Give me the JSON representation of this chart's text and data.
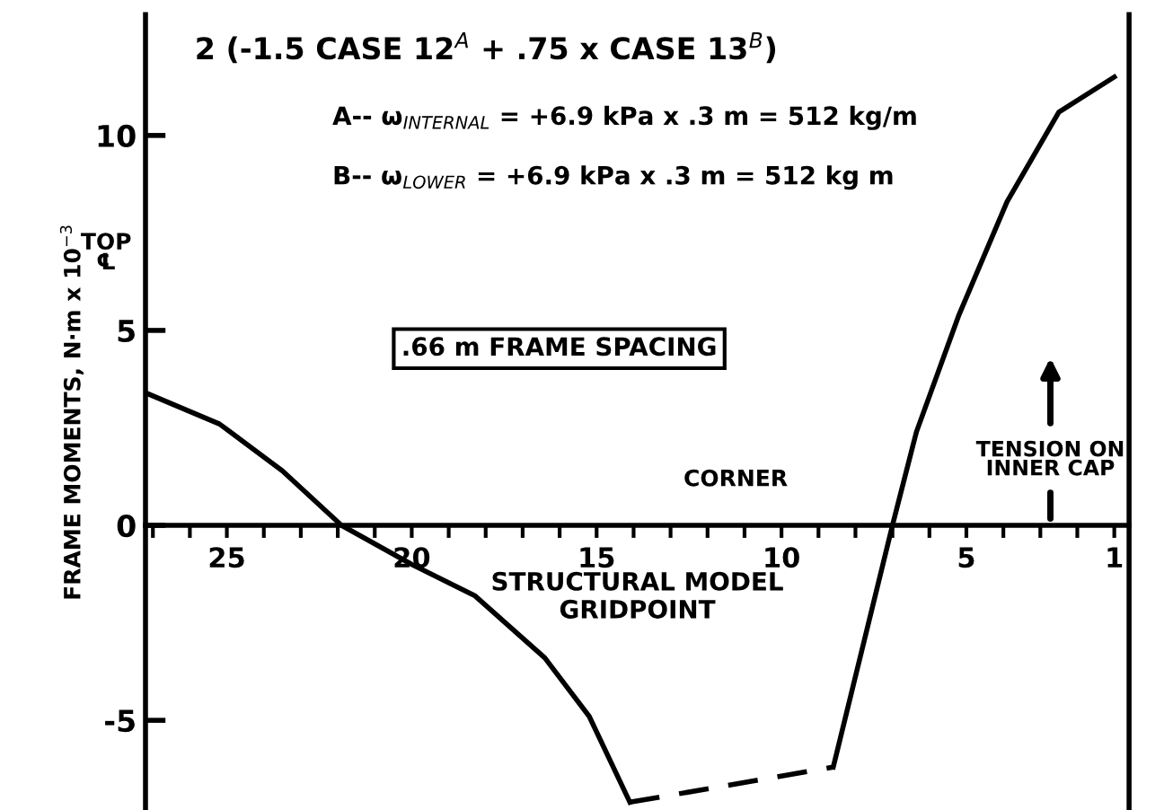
{
  "chart_data": {
    "type": "line",
    "title": "2 (-1.5 CASE 12$^{A}$ + .75 x CASE 13$^{B}$)",
    "xlabel": "STRUCTURAL MODEL\nGRIDPOINT",
    "ylabel": "FRAME MOMENTS, N·m x 10$^{−3}$",
    "series": [
      {
        "color": "#000000",
        "line_style": "solid",
        "x": [
          27.2,
          25.2,
          23.5,
          21.9,
          20.0,
          18.3,
          16.4,
          15.2,
          14.1
        ],
        "values": [
          3.4,
          2.6,
          1.4,
          0,
          -1.0,
          -1.8,
          -3.4,
          -4.9,
          -7.1
        ]
      },
      {
        "color": "#000000",
        "line_style": "dashed",
        "x": [
          14.1,
          8.6
        ],
        "values": [
          -7.1,
          -6.2
        ]
      },
      {
        "color": "#000000",
        "line_style": "solid",
        "x": [
          8.6,
          7.0,
          6.35,
          5.2,
          3.9,
          2.5,
          1.0
        ],
        "values": [
          -6.2,
          0,
          2.4,
          5.4,
          8.3,
          10.6,
          11.5
        ]
      }
    ],
    "xlim": [
      27.2,
      0.6
    ],
    "ylim": [
      -7.3,
      13.1
    ],
    "xticks": [
      {
        "value": 27,
        "label": null
      },
      {
        "value": 26,
        "label": null
      },
      25,
      {
        "value": 24,
        "label": null
      },
      {
        "value": 23,
        "label": null
      },
      {
        "value": 22,
        "label": null
      },
      {
        "value": 21,
        "label": null
      },
      20,
      {
        "value": 19,
        "label": null
      },
      {
        "value": 18,
        "label": null
      },
      {
        "value": 17,
        "label": null
      },
      {
        "value": 16,
        "label": null
      },
      15,
      {
        "value": 14,
        "label": null
      },
      {
        "value": 13,
        "label": null
      },
      {
        "value": 12,
        "label": null
      },
      {
        "value": 11,
        "label": null
      },
      10,
      {
        "value": 9,
        "label": null
      },
      {
        "value": 8,
        "label": null
      },
      {
        "value": 7,
        "label": null
      },
      {
        "value": 6,
        "label": null
      },
      5,
      {
        "value": 4,
        "label": null
      },
      {
        "value": 3,
        "label": null
      },
      {
        "value": 2,
        "label": null
      },
      1
    ],
    "yticks": [
      -5,
      0,
      5,
      10
    ],
    "grid": false,
    "legend": false,
    "marker": "none",
    "annotations": [
      "A-- ω$_{INTERNAL}$ = +6.9 kPa x .3 m = 512 kg/m",
      "B-- ω$_{LOWER}$ = +6.9 kPa x .3 m = 512 kg m",
      ".66 m FRAME SPACING",
      "TOP\n℄",
      "CORNER",
      "TENSION ON\nINNER CAP"
    ]
  }
}
